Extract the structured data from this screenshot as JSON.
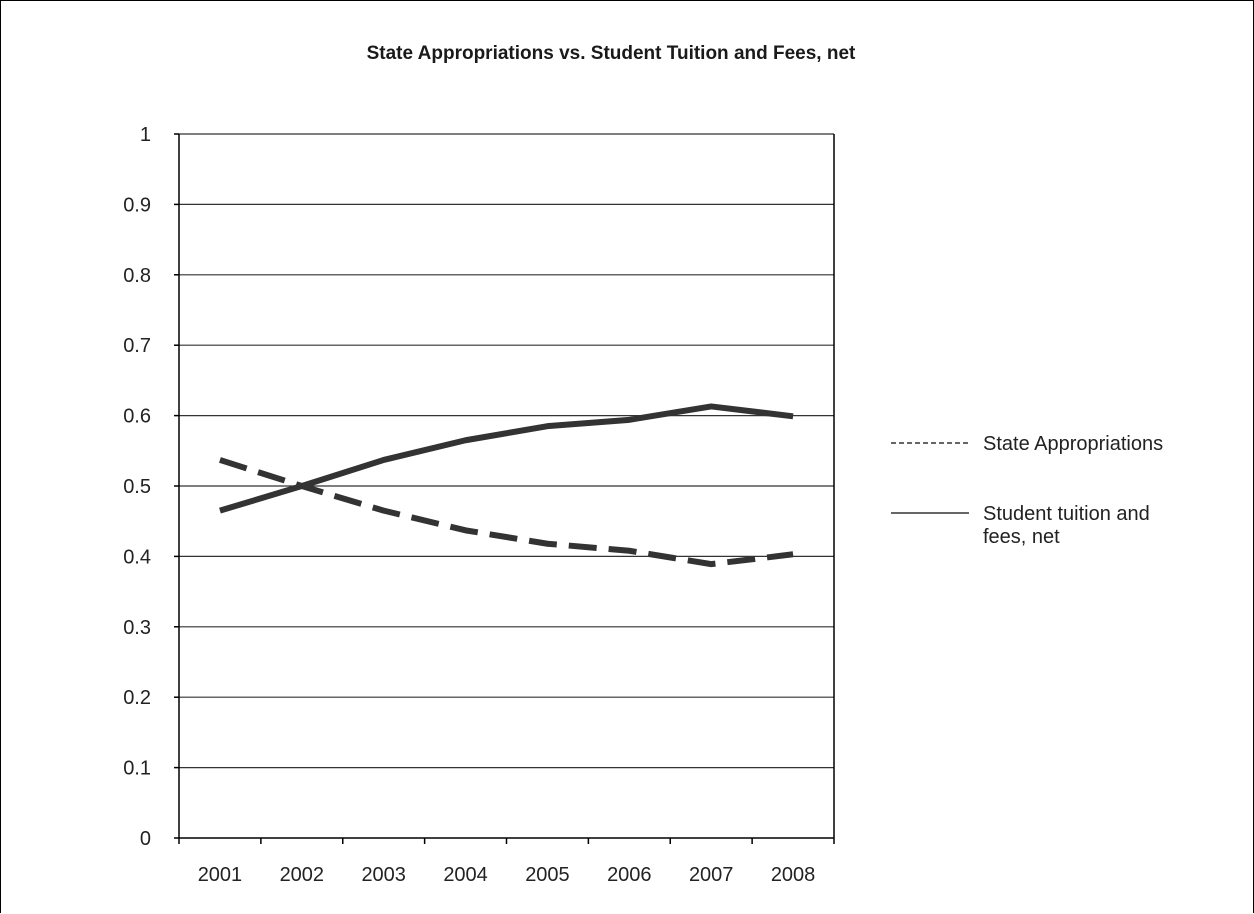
{
  "chart_data": {
    "type": "line",
    "title": "State Appropriations vs. Student Tuition and Fees, net",
    "xlabel": "",
    "ylabel": "",
    "categories": [
      "2001",
      "2002",
      "2003",
      "2004",
      "2005",
      "2006",
      "2007",
      "2008"
    ],
    "ylim": [
      0,
      1
    ],
    "yticks": [
      "0",
      "0.1",
      "0.2",
      "0.3",
      "0.4",
      "0.5",
      "0.6",
      "0.7",
      "0.8",
      "0.9",
      "1"
    ],
    "grid": true,
    "legend_position": "right",
    "series": [
      {
        "name": "State Appropriations",
        "style": "dashed",
        "color": "#333333",
        "values": [
          0.537,
          0.5,
          0.465,
          0.437,
          0.418,
          0.408,
          0.389,
          0.403
        ]
      },
      {
        "name": "Student tuition and fees, net",
        "style": "solid",
        "color": "#333333",
        "values": [
          0.465,
          0.5,
          0.537,
          0.565,
          0.585,
          0.594,
          0.613,
          0.599
        ]
      }
    ]
  }
}
